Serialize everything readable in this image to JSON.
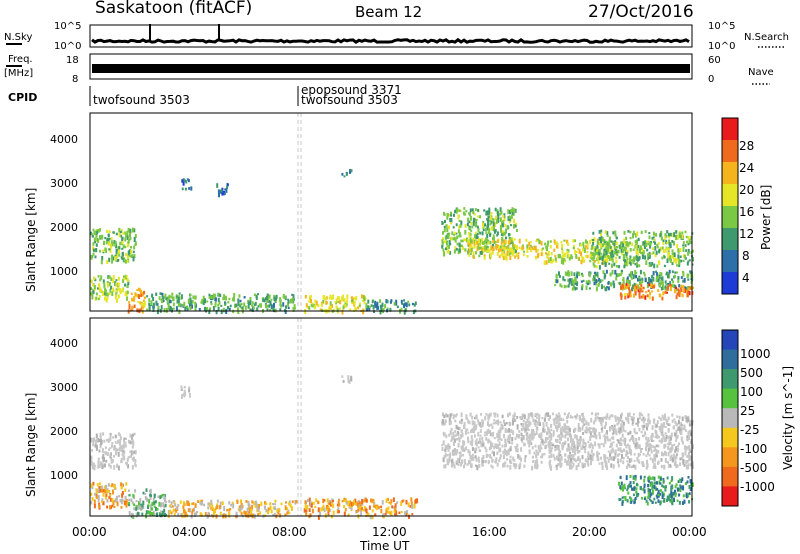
{
  "header": {
    "station": "Saskatoon (fitACF)",
    "beam": "Beam 12",
    "date": "27/Oct/2016"
  },
  "top_panels": {
    "nsky_label": "N.Sky",
    "nsky_ticks": [
      "10^5",
      "10^0"
    ],
    "nsearch_label": "N.Search",
    "nsearch_ticks": [
      "10^5",
      "10^0"
    ],
    "freq_label": "Freq.",
    "freq_unit": "[MHz]",
    "freq_ticks": [
      "18",
      "8"
    ],
    "nave_label": "Nave",
    "nave_ticks": [
      "60",
      "0"
    ],
    "cpid_label": "CPID",
    "cpid_entries": [
      {
        "text": "twofsound 3503",
        "row": 1
      },
      {
        "text": "epopsound 3371",
        "row": 0
      },
      {
        "text": "twofsound 3503",
        "row": 1
      }
    ]
  },
  "x_axis": {
    "label": "Time UT",
    "ticks": [
      "00:00",
      "04:00",
      "08:00",
      "12:00",
      "16:00",
      "20:00",
      "00:00"
    ]
  },
  "chart_data": [
    {
      "type": "heatmap",
      "name": "power-panel",
      "ylabel": "Slant Range [km]",
      "yticks": [
        "4000",
        "3000",
        "2000",
        "1000"
      ],
      "ylim": [
        180,
        4600
      ],
      "xlim_hours": [
        0,
        24
      ],
      "colorbar": {
        "label": "Power [dB]",
        "ticks": [
          "28",
          "24",
          "20",
          "16",
          "12",
          "8",
          "4"
        ],
        "colors": [
          "#e81c1c",
          "#f06a1e",
          "#f5b41e",
          "#e6e628",
          "#7ac843",
          "#3e9a6e",
          "#2d6fa8",
          "#1e3bd6"
        ]
      },
      "regions": [
        {
          "t": [
            0.0,
            1.8
          ],
          "r": [
            1300,
            2050
          ],
          "value": 12
        },
        {
          "t": [
            0.0,
            1.5
          ],
          "r": [
            450,
            1000
          ],
          "value": 14
        },
        {
          "t": [
            1.5,
            2.2
          ],
          "r": [
            200,
            700
          ],
          "value": 22
        },
        {
          "t": [
            2.2,
            8.2
          ],
          "r": [
            200,
            600
          ],
          "value": 10
        },
        {
          "t": [
            8.5,
            11.0
          ],
          "r": [
            200,
            550
          ],
          "value": 18
        },
        {
          "t": [
            11.0,
            13.0
          ],
          "r": [
            200,
            450
          ],
          "value": 8
        },
        {
          "t": [
            3.6,
            4.0
          ],
          "r": [
            2900,
            3150
          ],
          "value": 6
        },
        {
          "t": [
            5.0,
            5.5
          ],
          "r": [
            2800,
            3050
          ],
          "value": 6
        },
        {
          "t": [
            10.0,
            10.4
          ],
          "r": [
            3200,
            3350
          ],
          "value": 6
        },
        {
          "t": [
            14.0,
            17.0
          ],
          "r": [
            1500,
            2500
          ],
          "value": 12
        },
        {
          "t": [
            15.0,
            18.0
          ],
          "r": [
            1400,
            1800
          ],
          "value": 18
        },
        {
          "t": [
            18.0,
            21.0
          ],
          "r": [
            1300,
            1800
          ],
          "value": 16
        },
        {
          "t": [
            20.0,
            24.0
          ],
          "r": [
            1200,
            2000
          ],
          "value": 12
        },
        {
          "t": [
            18.5,
            24.0
          ],
          "r": [
            700,
            1100
          ],
          "value": 10
        },
        {
          "t": [
            21.0,
            24.0
          ],
          "r": [
            500,
            800
          ],
          "value": 24
        }
      ]
    },
    {
      "type": "heatmap",
      "name": "velocity-panel",
      "ylabel": "Slant Range [km]",
      "yticks": [
        "4000",
        "3000",
        "2000",
        "1000"
      ],
      "ylim": [
        180,
        4600
      ],
      "xlim_hours": [
        0,
        24
      ],
      "colorbar": {
        "label": "Velocity [m s^-1]",
        "ticks": [
          "1000",
          "500",
          "100",
          "25",
          "-25",
          "-100",
          "-500",
          "-1000"
        ],
        "colors": [
          "#2546b8",
          "#2f6e9c",
          "#3e9a6e",
          "#56c23e",
          "#b9b9b9",
          "#f5c81e",
          "#f5961e",
          "#f06a1e",
          "#e81c1c"
        ]
      },
      "regions": [
        {
          "t": [
            0.0,
            1.8
          ],
          "r": [
            1300,
            2050
          ],
          "category": "ground"
        },
        {
          "t": [
            0.0,
            1.5
          ],
          "r": [
            400,
            950
          ],
          "category": "-100"
        },
        {
          "t": [
            1.5,
            3.0
          ],
          "r": [
            200,
            800
          ],
          "category": "100"
        },
        {
          "t": [
            3.0,
            8.2
          ],
          "r": [
            200,
            550
          ],
          "category": "-25"
        },
        {
          "t": [
            8.5,
            13.0
          ],
          "r": [
            200,
            600
          ],
          "category": "-100"
        },
        {
          "t": [
            3.6,
            4.0
          ],
          "r": [
            2900,
            3150
          ],
          "category": "ground"
        },
        {
          "t": [
            10.0,
            10.4
          ],
          "r": [
            3200,
            3350
          ],
          "category": "ground"
        },
        {
          "t": [
            14.0,
            24.0
          ],
          "r": [
            1300,
            2500
          ],
          "category": "ground"
        },
        {
          "t": [
            21.0,
            24.0
          ],
          "r": [
            500,
            1100
          ],
          "category": "500"
        }
      ]
    }
  ]
}
